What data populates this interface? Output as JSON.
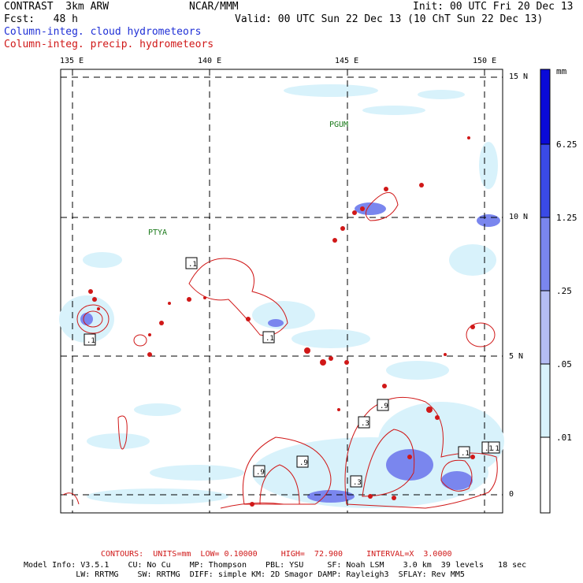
{
  "header": {
    "model": "CONTRAST  3km ARW",
    "center": "NCAR/MMM",
    "init": "Init: 00 UTC Fri 20 Dec 13",
    "fcst": "Fcst:   48 h",
    "valid": "Valid: 00 UTC Sun 22 Dec 13 (10 ChT Sun 22 Dec 13)",
    "field_cloud": "Column-integ. cloud hydrometeors",
    "field_precip": "Column-integ. precip. hydrometeors"
  },
  "map": {
    "lon_labels": [
      "135 E",
      "140 E",
      "145 E",
      "150 E"
    ],
    "lat_labels": [
      "15 N",
      "10 N",
      "5 N",
      "0"
    ],
    "stations": [
      "PGUM",
      "PTYA"
    ],
    "contour_labels": [
      ".1",
      ".1",
      ".1",
      ".1",
      ".9",
      ".3",
      ".9",
      ".9",
      ".3",
      ".1",
      ".1"
    ]
  },
  "colorbar": {
    "unit": "mm",
    "levels": [
      "6.25",
      "1.25",
      ".25",
      ".05",
      ".01"
    ],
    "colors": [
      "#0a0ad8",
      "#3a4ae6",
      "#7a86ee",
      "#b4bdf4",
      "#d8f2fb",
      "#ffffff"
    ]
  },
  "footer": {
    "contours": "CONTOURS:  UNITS=mm  LOW= 0.10000     HIGH=  72.900     INTERVAL=X  3.0000",
    "model_info_1": "Model Info: V3.5.1    CU: No Cu    MP: Thompson    PBL: YSU     SF: Noah LSM    3.0 km  39 levels   18 sec",
    "model_info_2": "           LW: RRTMG    SW: RRTMG  DIFF: simple KM: 2D Smagor DAMP: Rayleigh3  SFLAY: Rev MM5"
  },
  "colors": {
    "cloud": "#1f2fd6",
    "precip": "#d01818",
    "cloud_light": "#d8f2fb"
  }
}
